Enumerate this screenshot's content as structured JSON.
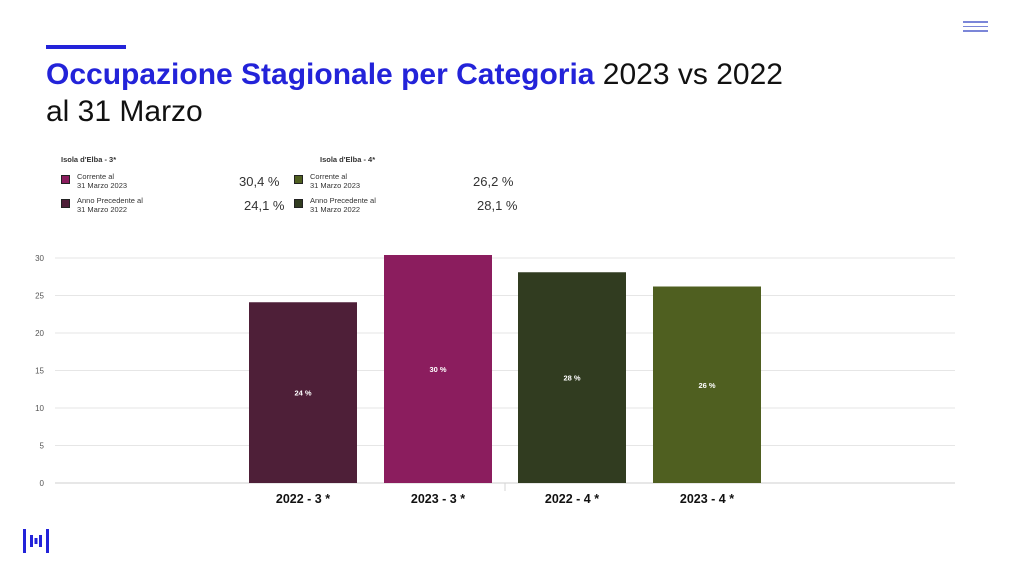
{
  "header": {
    "title_highlight": "Occupazione Stagionale per Categoria",
    "title_rest": " 2023 vs 2022",
    "title_line2": "al 31 Marzo"
  },
  "colors": {
    "accent": "#2323d9",
    "bar_2022_3": "#4e1f38",
    "bar_2023_3": "#8b1d5e",
    "bar_2022_4": "#313c20",
    "bar_2023_4": "#4f5f20"
  },
  "legend": [
    {
      "title": "Isola d'Elba - 3*",
      "rows": [
        {
          "label_l1": "Corrente al",
          "label_l2": "31 Marzo 2023",
          "value": "30,4 %",
          "color": "#8b1d5e"
        },
        {
          "label_l1": "Anno Precedente al",
          "label_l2": "31 Marzo 2022",
          "value": "24,1 %",
          "color": "#4e1f38"
        }
      ]
    },
    {
      "title": "Isola d'Elba - 4*",
      "rows": [
        {
          "label_l1": "Corrente al",
          "label_l2": "31 Marzo 2023",
          "value": "26,2 %",
          "color": "#4f5f20"
        },
        {
          "label_l1": "Anno Precedente al",
          "label_l2": "31 Marzo 2022",
          "value": "28,1 %",
          "color": "#313c20"
        }
      ]
    }
  ],
  "chart_data": {
    "type": "bar",
    "categories": [
      "2022 - 3 *",
      "2023 - 3 *",
      "2022 - 4 *",
      "2023 - 4 *"
    ],
    "values": [
      24.1,
      30.4,
      28.1,
      26.2
    ],
    "data_labels": [
      "24 %",
      "30 %",
      "28 %",
      "26 %"
    ],
    "colors": [
      "#4e1f38",
      "#8b1d5e",
      "#313c20",
      "#4f5f20"
    ],
    "ylim": [
      0,
      30
    ],
    "yticks": [
      0,
      5,
      10,
      15,
      20,
      25,
      30
    ],
    "grid": true
  }
}
